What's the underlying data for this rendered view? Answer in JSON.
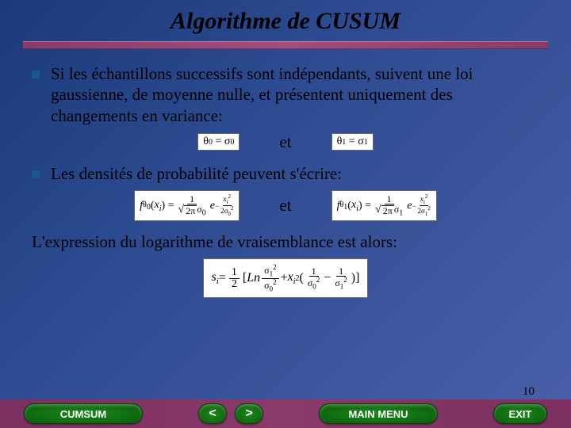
{
  "title": "Algorithme de CUSUM",
  "bullet1": "Si les échantillons successifs sont indépendants, suivent une loi gaussienne, de moyenne nulle, et présentent uniquement des changements en variance:",
  "conj": "et",
  "eq1_left": "θ₀ = σ₀",
  "eq1_right": "θ₁ = σ₁",
  "bullet2": "Les densités de probabilité peuvent s'écrire:",
  "nonbullet": "L'expression du logarithme de vraisemblance est alors:",
  "footer": {
    "cumsum": "CUMSUM",
    "prev": "<",
    "next": ">",
    "main": "MAIN MENU",
    "exit": "EXIT"
  },
  "page_number": "10"
}
